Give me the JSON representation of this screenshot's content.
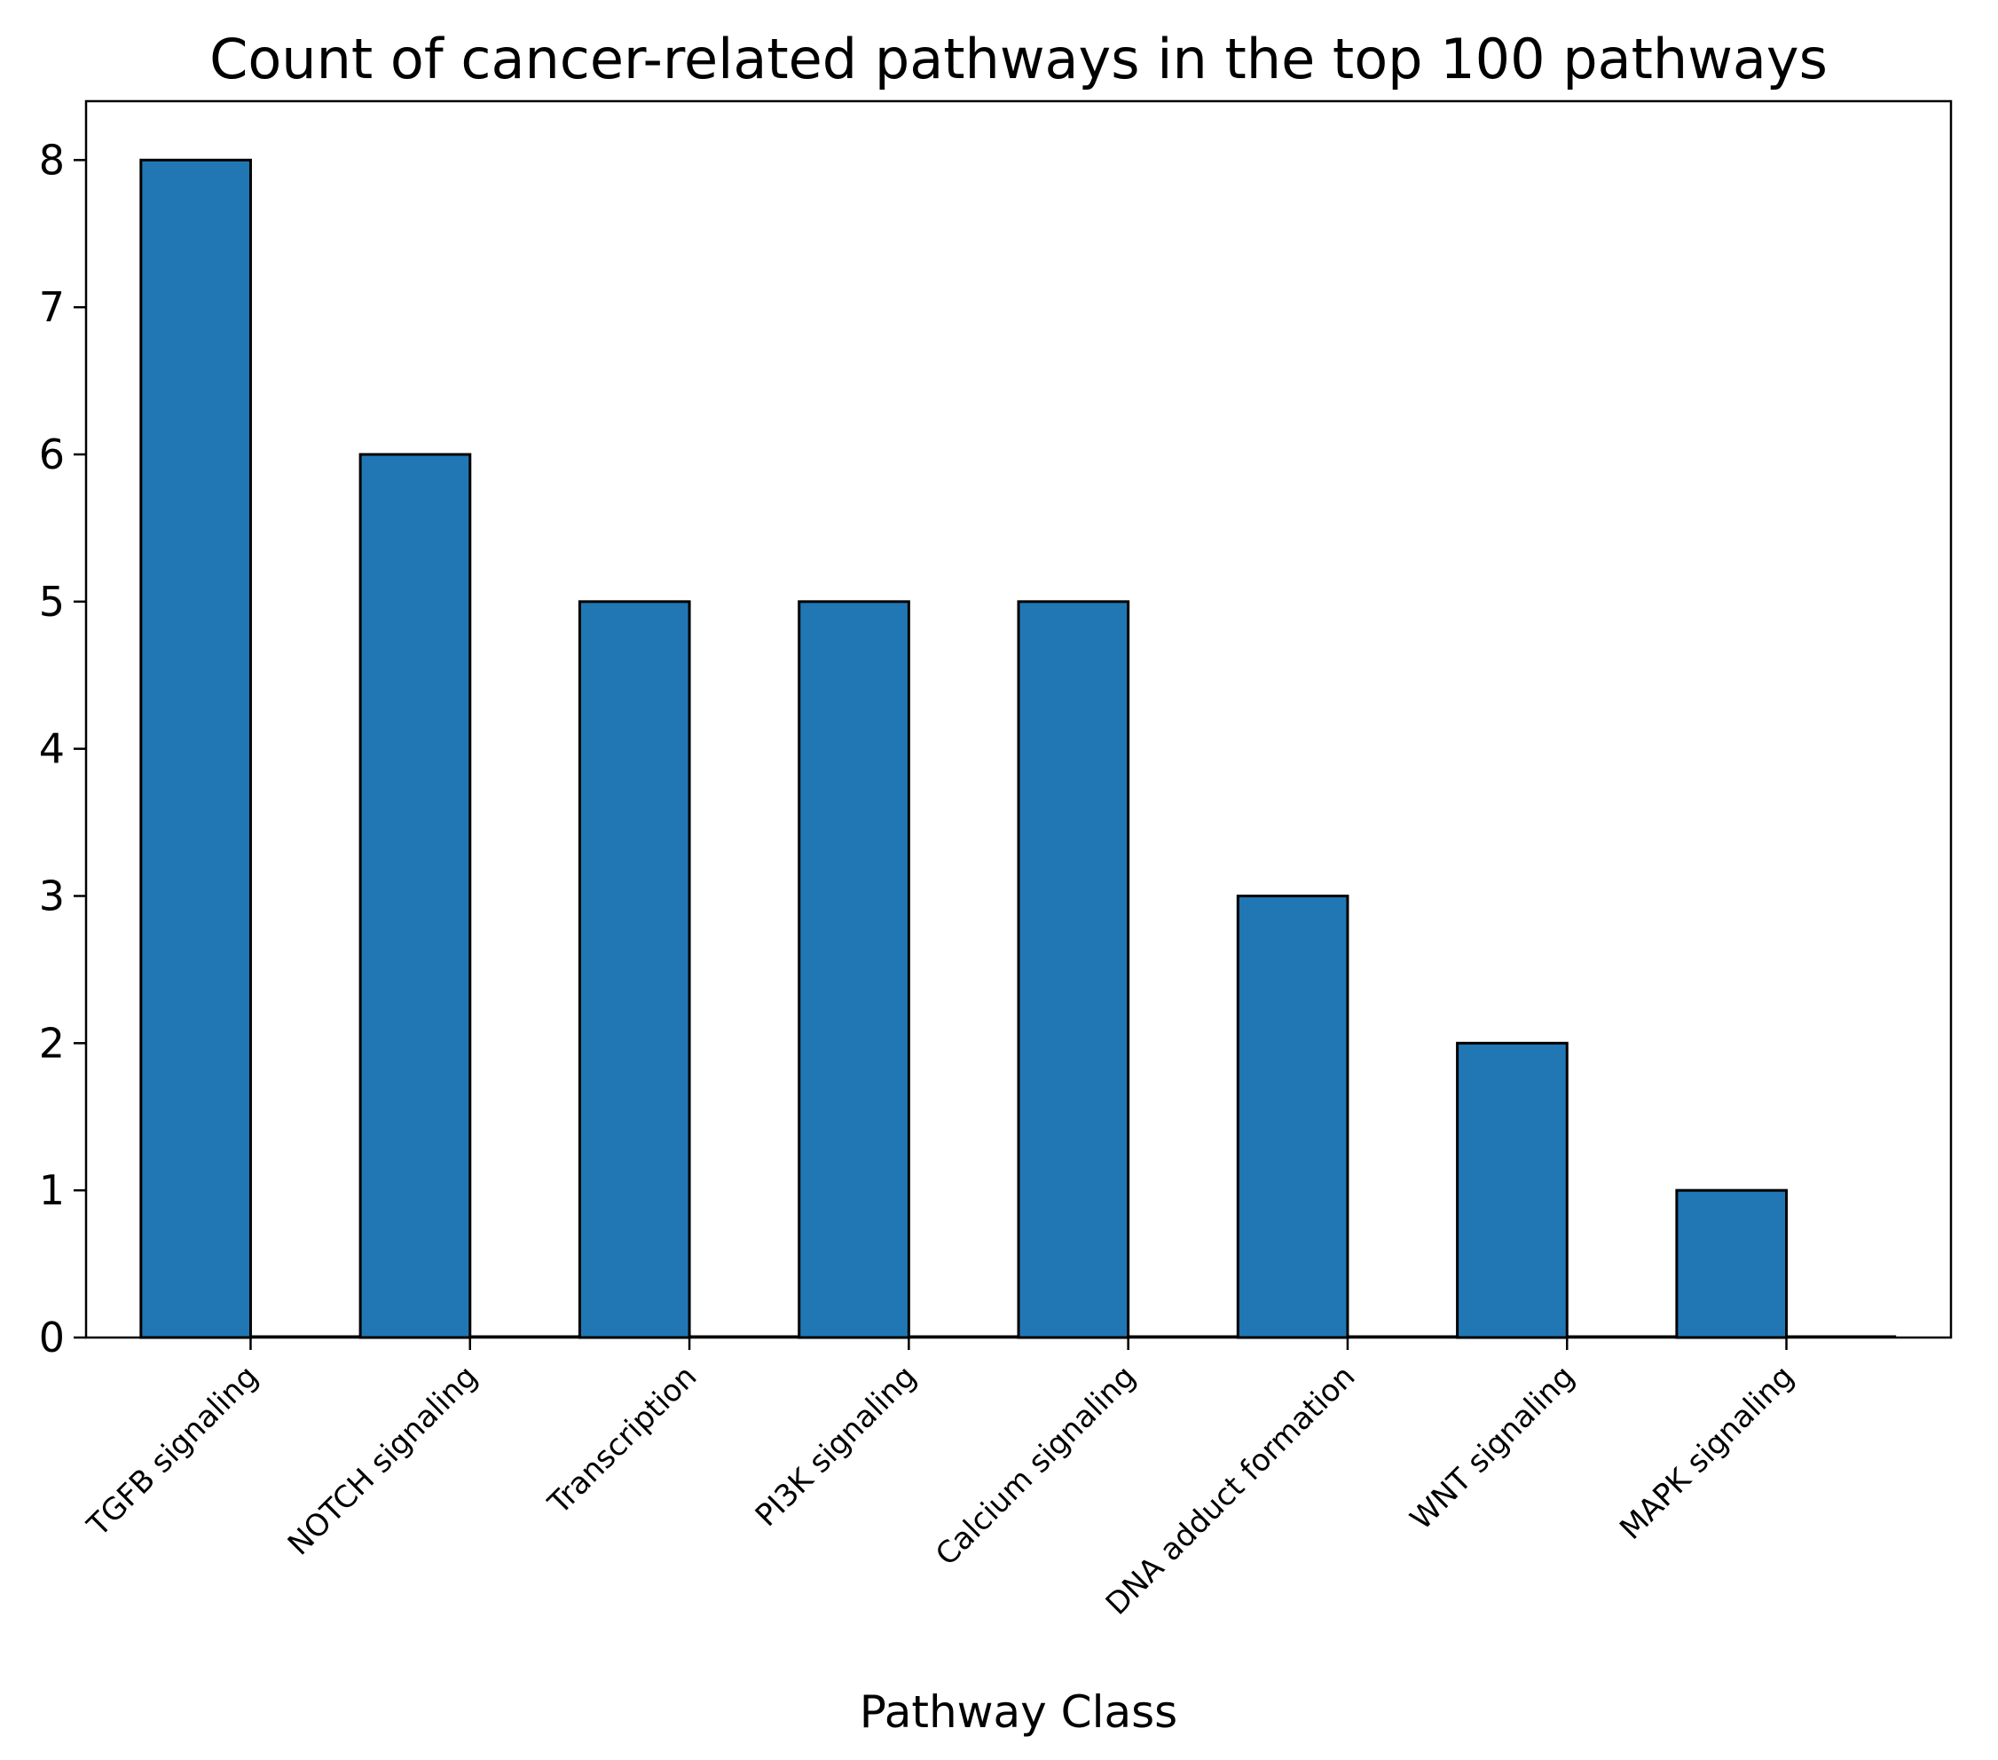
{
  "chart_data": {
    "type": "bar",
    "title": "Count of cancer-related pathways in the top 100 pathways",
    "xlabel": "Pathway Class",
    "ylabel": "",
    "categories": [
      "TGFB signaling",
      "NOTCH signaling",
      "Transcription",
      "PI3K signaling",
      "Calcium signaling",
      "DNA adduct formation",
      "WNT signaling",
      "MAPK signaling"
    ],
    "values": [
      8,
      6,
      5,
      5,
      5,
      3,
      2,
      1
    ],
    "ylim": [
      0,
      8.4
    ],
    "yticks": [
      0,
      1,
      2,
      3,
      4,
      5,
      6,
      7,
      8
    ],
    "xtick_rotation_deg": 45,
    "grid": false,
    "legend": "none",
    "colors": {
      "bar_fill": "#2077b4",
      "bar_edge": "#000000",
      "axes": "#000000",
      "background": "#ffffff"
    }
  }
}
